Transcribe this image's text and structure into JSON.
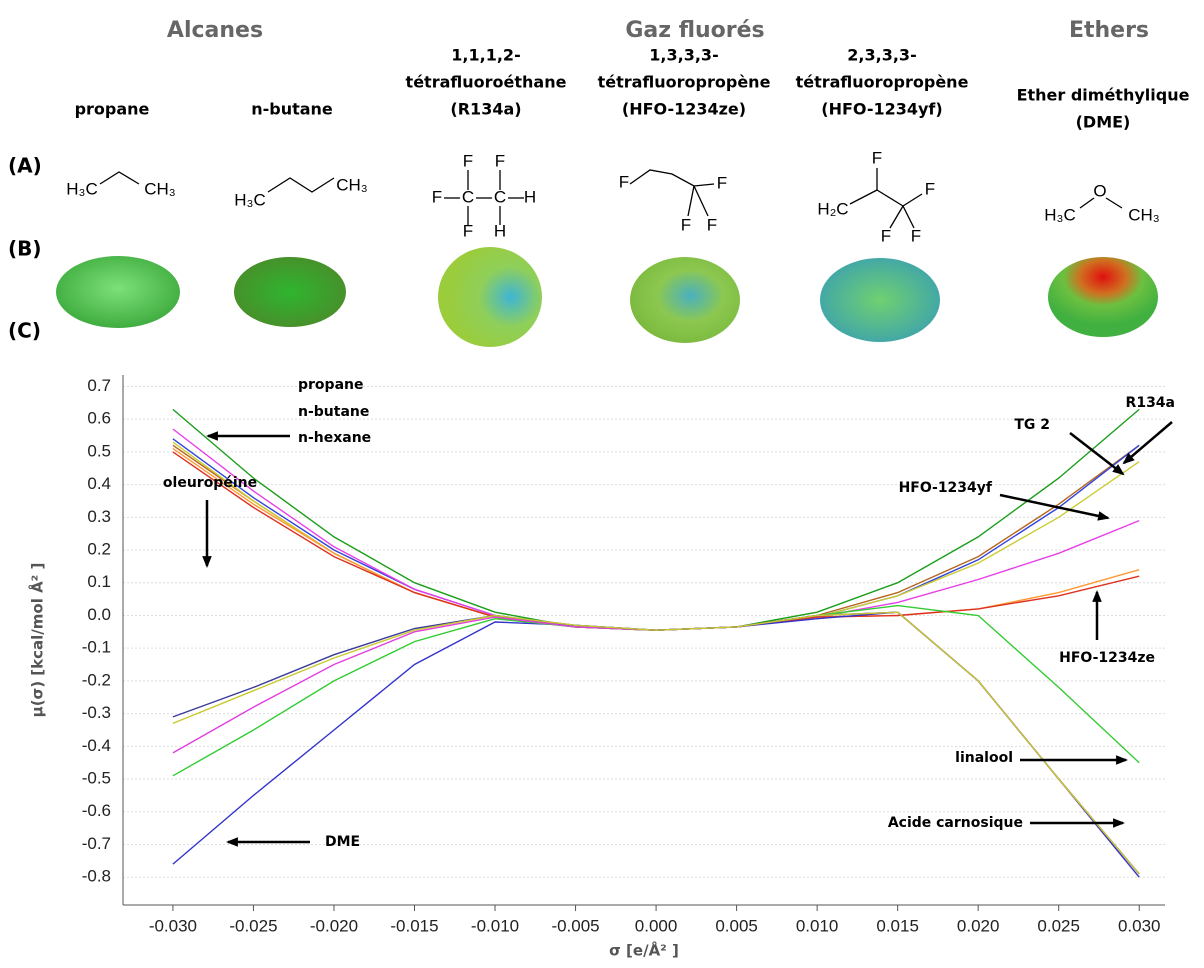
{
  "header": {
    "groups": [
      "Alcanes",
      "Gaz fluorés",
      "Ethers"
    ],
    "panels": [
      "(A)",
      "(B)",
      "(C)"
    ]
  },
  "molecules": [
    {
      "name": [
        "propane"
      ],
      "atoms": [
        "H₃C",
        "CH₃"
      ]
    },
    {
      "name": [
        "n-butane"
      ],
      "atoms": [
        "H₃C",
        "CH₃"
      ]
    },
    {
      "name": [
        "1,1,1,2-",
        "tétrafluoroéthane",
        "(R134a)"
      ],
      "atoms": [
        "F",
        "F",
        "F",
        "C",
        "C",
        "H",
        "F",
        "H"
      ]
    },
    {
      "name": [
        "1,3,3,3-",
        "tétrafluoropropène",
        "(HFO-1234ze)"
      ],
      "atoms": [
        "F",
        "F",
        "F",
        "F"
      ]
    },
    {
      "name": [
        "2,3,3,3-",
        "tétrafluoropropène",
        "(HFO-1234yf)"
      ],
      "atoms": [
        "F",
        "H₂C",
        "F",
        "F",
        "F"
      ]
    },
    {
      "name": [
        "Ether diméthylique",
        "(DME)"
      ],
      "atoms": [
        "H₃C",
        "O",
        "CH₃"
      ]
    }
  ],
  "chart_data": {
    "type": "line",
    "xlabel": "σ [e/Å² ]",
    "ylabel": "μ(σ) [kcal/mol Å² ]",
    "x": [
      -0.03,
      -0.025,
      -0.02,
      -0.015,
      -0.01,
      -0.005,
      0,
      0.005,
      0.01,
      0.015,
      0.02,
      0.025,
      0.03
    ],
    "xlim": [
      -0.0331,
      0.0316
    ],
    "ylim": [
      -0.885,
      0.735
    ],
    "xticks": [
      {
        "value": -0.03,
        "label": "-0.030"
      },
      {
        "value": -0.025,
        "label": "-0.025"
      },
      {
        "value": -0.02,
        "label": "-0.020"
      },
      {
        "value": -0.015,
        "label": "-0.015"
      },
      {
        "value": -0.01,
        "label": "-0.010"
      },
      {
        "value": -0.005,
        "label": "-0.005"
      },
      {
        "value": 0,
        "label": "0.000"
      },
      {
        "value": 0.005,
        "label": "0.005"
      },
      {
        "value": 0.01,
        "label": "0.010"
      },
      {
        "value": 0.015,
        "label": "0.015"
      },
      {
        "value": 0.02,
        "label": "0.020"
      },
      {
        "value": 0.025,
        "label": "0.025"
      },
      {
        "value": 0.03,
        "label": "0.030"
      }
    ],
    "yticks": [
      0.7,
      0.6,
      0.5,
      0.4,
      0.3,
      0.2,
      0.1,
      {
        "value": 0,
        "label": "0.0"
      },
      -0.1,
      -0.2,
      -0.3,
      -0.4,
      -0.5,
      -0.6,
      -0.7,
      -0.8
    ],
    "grid": true,
    "series": [
      {
        "color": "#1a9e1a",
        "values": [
          0.63,
          0.42,
          0.24,
          0.1,
          0.01,
          -0.035,
          -0.045,
          -0.035,
          0.01,
          0.1,
          0.24,
          0.42,
          0.63
        ]
      },
      {
        "color": "#b5651d",
        "values": [
          0.52,
          0.35,
          0.19,
          0.07,
          -0.005,
          -0.035,
          -0.045,
          -0.035,
          0.0,
          0.07,
          0.18,
          0.34,
          0.52
        ]
      },
      {
        "color": "#3344dd",
        "values": [
          0.54,
          0.36,
          0.2,
          0.08,
          0.0,
          -0.035,
          -0.045,
          -0.035,
          -0.005,
          0.06,
          0.17,
          0.33,
          0.52
        ]
      },
      {
        "color": "#cccc33",
        "values": [
          0.53,
          0.35,
          0.19,
          0.07,
          -0.005,
          -0.035,
          -0.045,
          -0.035,
          -0.005,
          0.06,
          0.16,
          0.3,
          0.47
        ]
      },
      {
        "color": "#e83ee8",
        "values": [
          0.57,
          0.38,
          0.21,
          0.08,
          0.0,
          -0.035,
          -0.045,
          -0.035,
          -0.005,
          0.04,
          0.11,
          0.19,
          0.29
        ]
      },
      {
        "color": "#ff9933",
        "values": [
          0.51,
          0.34,
          0.19,
          0.07,
          -0.005,
          -0.035,
          -0.045,
          -0.035,
          -0.005,
          0.0,
          0.02,
          0.07,
          0.14
        ]
      },
      {
        "color": "#dd3322",
        "values": [
          0.5,
          0.33,
          0.18,
          0.07,
          -0.005,
          -0.035,
          -0.045,
          -0.035,
          -0.005,
          0.0,
          0.02,
          0.06,
          0.12
        ]
      },
      {
        "color": "#3333cc",
        "values": [
          -0.76,
          -0.55,
          -0.35,
          -0.15,
          -0.02,
          -0.03,
          -0.045,
          -0.035,
          -0.01,
          0.01,
          -0.2,
          -0.5,
          -0.8
        ]
      },
      {
        "color": "#33cc33",
        "values": [
          -0.49,
          -0.35,
          -0.2,
          -0.08,
          -0.01,
          -0.035,
          -0.045,
          -0.035,
          0.0,
          0.03,
          0.0,
          -0.22,
          -0.45
        ]
      },
      {
        "color": "#e040e0",
        "values": [
          -0.42,
          -0.28,
          -0.15,
          -0.05,
          -0.005,
          -0.035,
          -0.045,
          -0.035,
          0.0,
          0.01,
          -0.2,
          -0.5,
          -0.79
        ]
      },
      {
        "color": "#3a3a9a",
        "values": [
          -0.31,
          -0.22,
          -0.12,
          -0.04,
          0.0,
          -0.03,
          -0.045,
          -0.035,
          0.0,
          0.01,
          -0.2,
          -0.5,
          -0.79
        ]
      },
      {
        "color": "#c8c830",
        "values": [
          -0.33,
          -0.23,
          -0.13,
          -0.045,
          0.0,
          -0.03,
          -0.045,
          -0.035,
          0.0,
          0.01,
          -0.2,
          -0.5,
          -0.79
        ]
      }
    ],
    "annotations": [
      "propane",
      "n-butane",
      "n-hexane",
      "TG 2",
      "HFO-1234yf",
      "R134a",
      "HFO-1234ze",
      "oleuropéine",
      "linalool",
      "Acide carnosique",
      "DME"
    ]
  }
}
